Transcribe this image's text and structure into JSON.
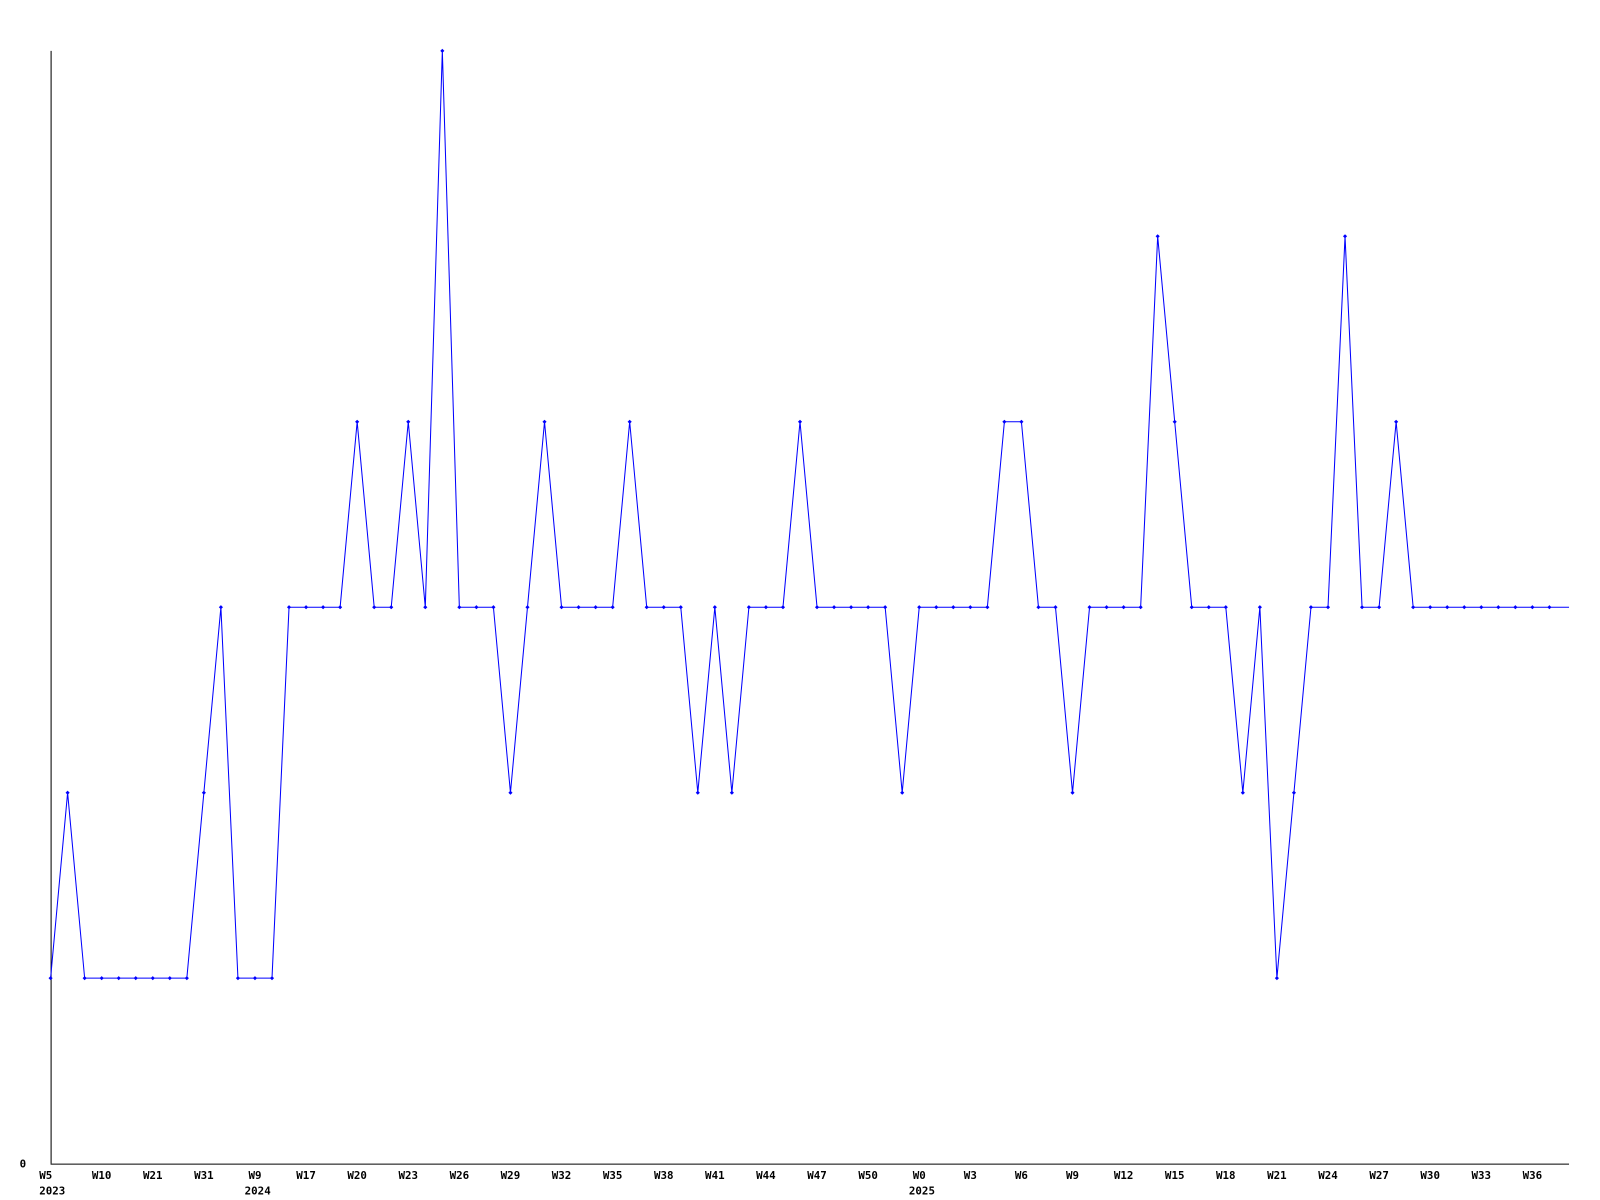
{
  "chart_data": {
    "type": "line",
    "title": "",
    "xlabel": "",
    "ylabel": "",
    "ylim": [
      0,
      6
    ],
    "y_tick_labels": [
      "0"
    ],
    "grid": false,
    "line_color": "#0000ff",
    "x_tick_labels": [
      "W5",
      "W10",
      "W21",
      "W31",
      "W9",
      "W17",
      "W20",
      "W23",
      "W26",
      "W29",
      "W32",
      "W35",
      "W38",
      "W41",
      "W44",
      "W47",
      "W50",
      "W0",
      "W3",
      "W6",
      "W9",
      "W12",
      "W15",
      "W18",
      "W21",
      "W24",
      "W27",
      "W30",
      "W33",
      "W36"
    ],
    "year_labels": [
      {
        "label": "2023",
        "under_tick": 0
      },
      {
        "label": "2024",
        "under_tick": 4
      },
      {
        "label": "2025",
        "under_tick": 17
      }
    ],
    "series": [
      {
        "values": [
          1,
          2,
          1,
          1,
          1,
          1,
          1,
          1,
          1,
          2,
          3,
          1,
          1,
          1,
          3,
          3,
          3,
          3,
          4,
          3,
          3,
          4,
          3,
          6,
          3,
          3,
          3,
          2,
          3,
          4,
          3,
          3,
          3,
          3,
          4,
          3,
          3,
          3,
          2,
          3,
          2,
          3,
          3,
          3,
          4,
          3,
          3,
          3,
          3,
          3,
          2,
          3,
          3,
          3,
          3,
          3,
          4,
          4,
          3,
          3,
          2,
          3,
          3,
          3,
          3,
          5,
          4,
          3,
          3,
          3,
          2,
          3,
          1,
          2,
          3,
          3,
          5,
          3,
          3,
          4,
          3,
          3,
          3,
          3,
          3,
          3,
          3,
          3,
          3
        ]
      }
    ]
  }
}
